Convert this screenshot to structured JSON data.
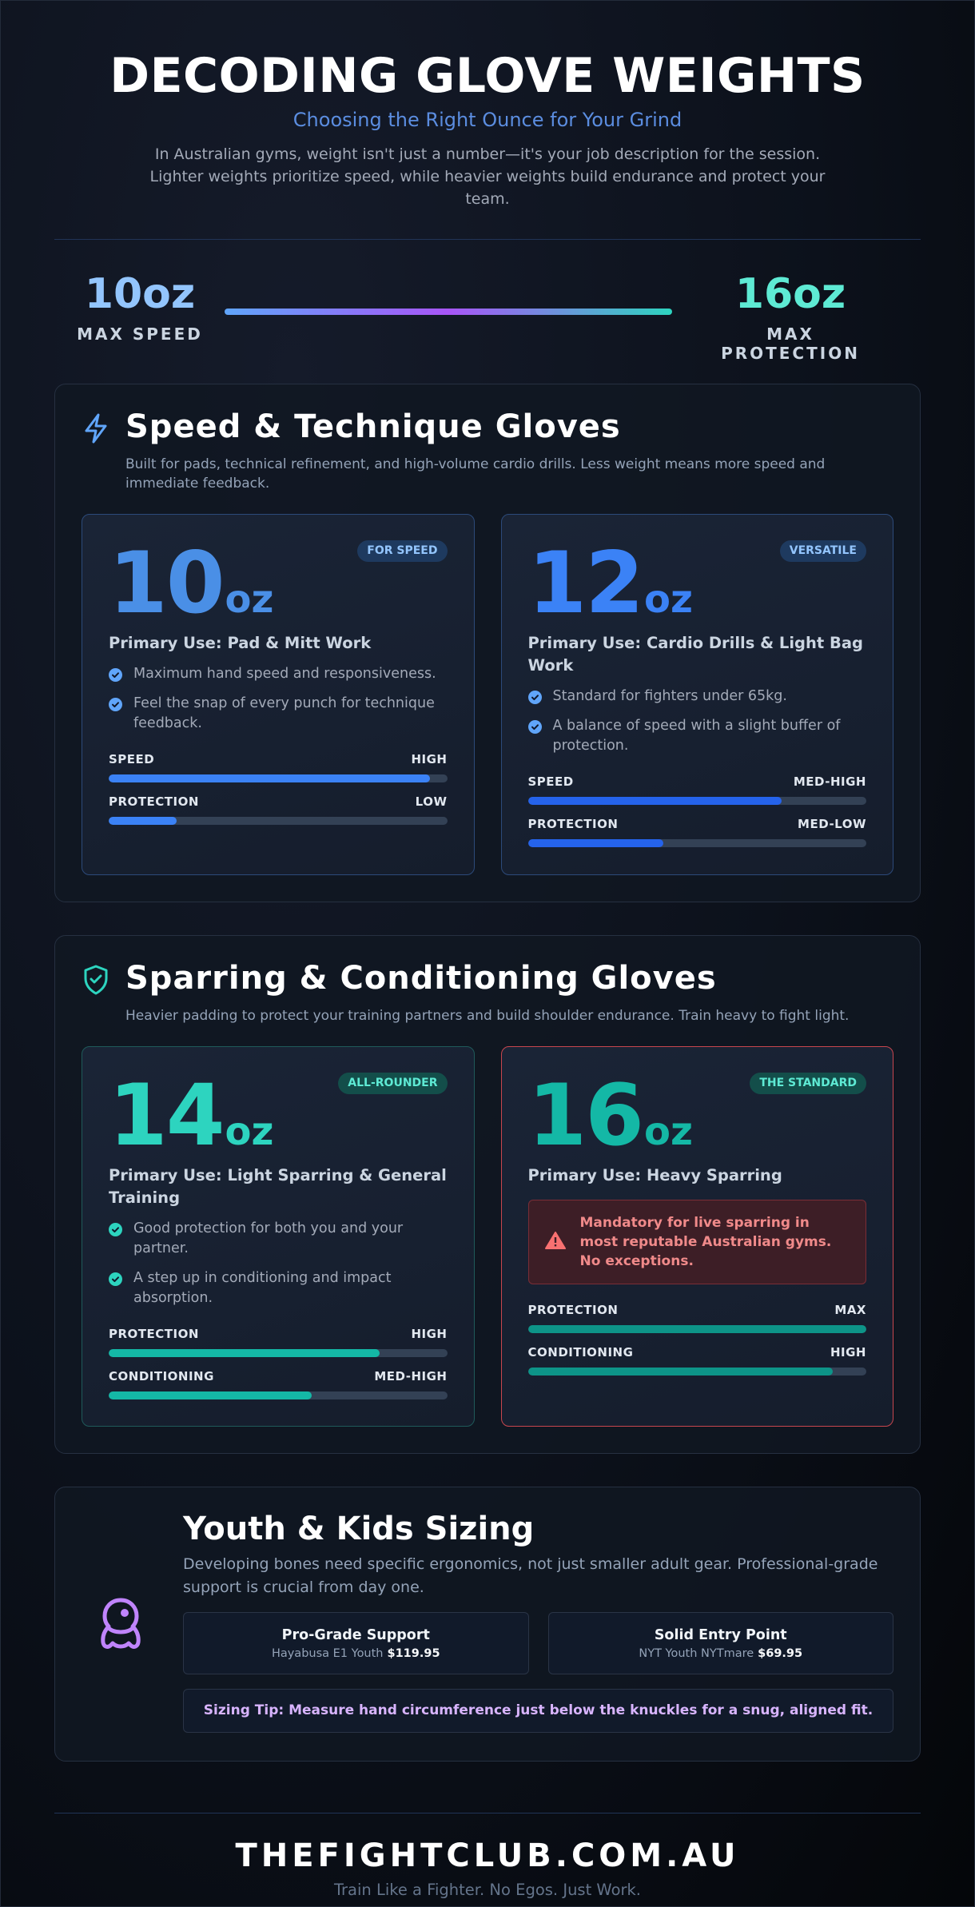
{
  "header": {
    "title": "DECODING GLOVE WEIGHTS",
    "subtitle": "Choosing the Right Ounce for Your Grind",
    "intro": "In Australian gyms, weight isn't just a number—it's your job description for the session. Lighter weights prioritize speed, while heavier weights build endurance and protect your team."
  },
  "scale": {
    "min": {
      "label": "10oz",
      "caption": "MAX SPEED"
    },
    "max": {
      "label": "16oz",
      "caption": "MAX PROTECTION"
    }
  },
  "sections": [
    {
      "title": "Speed & Technique Gloves",
      "description": "Built for pads, technical refinement, and high-volume cardio drills. Less weight means more speed and immediate feedback.",
      "cards": [
        {
          "weight": 10,
          "unit": "oz",
          "badge": "FOR SPEED",
          "color": "#4a8fe6",
          "primary_use": "Primary Use: Pad & Mitt Work",
          "points": [
            "Maximum hand speed and responsiveness.",
            "Feel the snap of every punch for technique feedback."
          ],
          "meters": [
            {
              "label": "SPEED",
              "level": "HIGH",
              "fill": 95,
              "color": "#3b82f6"
            },
            {
              "label": "PROTECTION",
              "level": "LOW",
              "fill": 20,
              "color": "#3b82f6"
            }
          ]
        },
        {
          "weight": 12,
          "unit": "oz",
          "badge": "VERSATILE",
          "color": "#3b82f6",
          "primary_use": "Primary Use: Cardio Drills & Light Bag Work",
          "points": [
            "Standard for fighters under 65kg.",
            "A balance of speed with a slight buffer of protection."
          ],
          "meters": [
            {
              "label": "SPEED",
              "level": "MED-HIGH",
              "fill": 75,
              "color": "#2563eb"
            },
            {
              "label": "PROTECTION",
              "level": "MED-LOW",
              "fill": 40,
              "color": "#2563eb"
            }
          ]
        }
      ]
    },
    {
      "title": "Sparring & Conditioning Gloves",
      "description": "Heavier padding to protect your training partners and build shoulder endurance. Train heavy to fight light.",
      "cards": [
        {
          "weight": 14,
          "unit": "oz",
          "badge": "ALL-ROUNDER",
          "color": "#2dd4bf",
          "primary_use": "Primary Use: Light Sparring & General Training",
          "points": [
            "Good protection for both you and your partner.",
            "A step up in conditioning and impact absorption."
          ],
          "meters": [
            {
              "label": "PROTECTION",
              "level": "HIGH",
              "fill": 80,
              "color": "#14b8a6"
            },
            {
              "label": "CONDITIONING",
              "level": "MED-HIGH",
              "fill": 60,
              "color": "#14b8a6"
            }
          ]
        },
        {
          "weight": 16,
          "unit": "oz",
          "badge": "THE STANDARD",
          "color": "#14b8a6",
          "primary_use": "Primary Use: Heavy Sparring",
          "alert": "Mandatory for live sparring in most reputable Australian gyms. No exceptions.",
          "meters": [
            {
              "label": "PROTECTION",
              "level": "MAX",
              "fill": 100,
              "color": "#0d9488"
            },
            {
              "label": "CONDITIONING",
              "level": "HIGH",
              "fill": 90,
              "color": "#0d9488"
            }
          ]
        }
      ]
    }
  ],
  "youth": {
    "title": "Youth & Kids Sizing",
    "description": "Developing bones need specific ergonomics, not just smaller adult gear. Professional-grade support is crucial from day one.",
    "options": [
      {
        "title": "Pro-Grade Support",
        "product": "Hayabusa E1 Youth",
        "price": "$119.95"
      },
      {
        "title": "Solid Entry Point",
        "product": "NYT Youth NYTmare",
        "price": "$69.95"
      }
    ],
    "tip": "Sizing Tip: Measure hand circumference just below the knuckles for a snug, aligned fit."
  },
  "footer": {
    "site": "THEFIGHTCLUB.COM.AU",
    "tagline": "Train Like a Fighter. No Egos. Just Work."
  }
}
